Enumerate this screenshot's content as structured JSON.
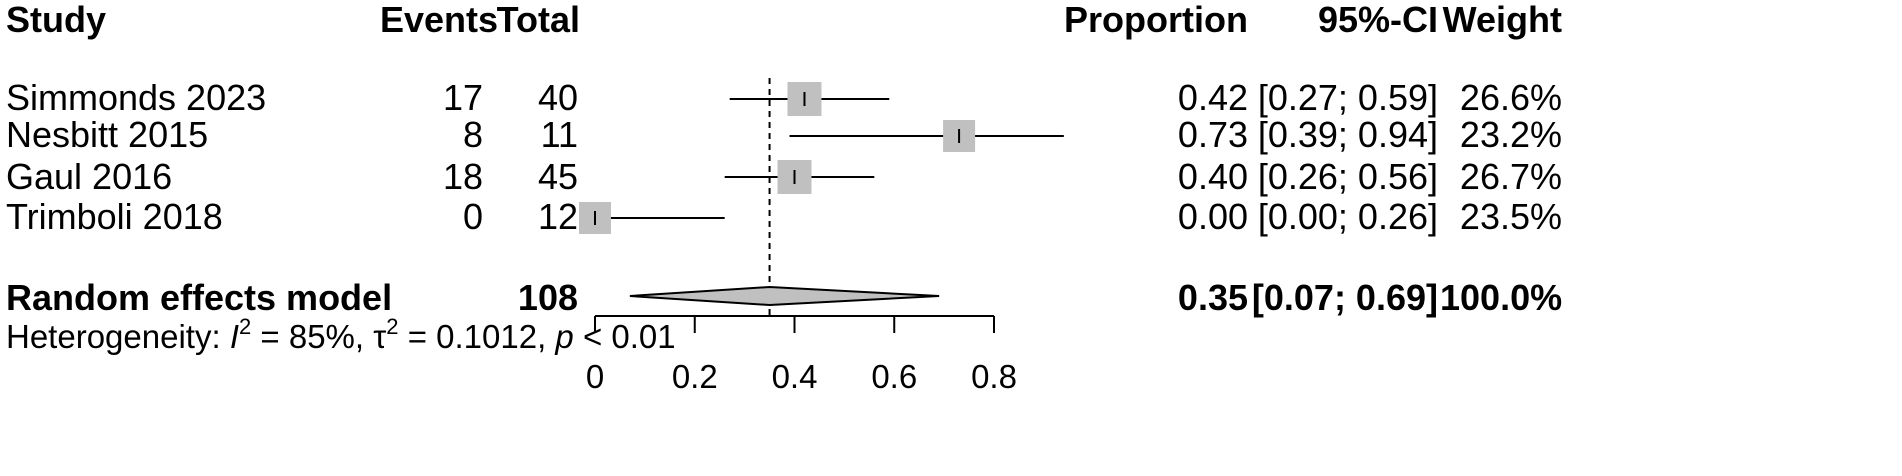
{
  "headers": {
    "study": "Study",
    "events": "Events",
    "total": "Total",
    "proportion": "Proportion",
    "ci": "95%-CI",
    "weight": "Weight"
  },
  "colors": {
    "box": "#c0c0c0",
    "line": "#000000",
    "diamond_fill": "#c0c0c0"
  },
  "chart_data": {
    "type": "forest",
    "axis": {
      "ticks": [
        "0",
        "0.2",
        "0.4",
        "0.6",
        "0.8"
      ],
      "range": [
        0,
        0.8
      ]
    },
    "reference_line": 0.35,
    "studies": [
      {
        "study": "Simmonds 2023",
        "events": "17",
        "total": "40",
        "proportion": 0.42,
        "lower": 0.27,
        "upper": 0.59,
        "prop_text": "0.42",
        "ci_text": "[0.27; 0.59]",
        "weight_text": "26.6%"
      },
      {
        "study": "Nesbitt 2015",
        "events": "8",
        "total": "11",
        "proportion": 0.73,
        "lower": 0.39,
        "upper": 0.94,
        "prop_text": "0.73",
        "ci_text": "[0.39; 0.94]",
        "weight_text": "23.2%"
      },
      {
        "study": "Gaul 2016",
        "events": "18",
        "total": "45",
        "proportion": 0.4,
        "lower": 0.26,
        "upper": 0.56,
        "prop_text": "0.40",
        "ci_text": "[0.26; 0.56]",
        "weight_text": "26.7%"
      },
      {
        "study": "Trimboli 2018",
        "events": "0",
        "total": "12",
        "proportion": 0.0,
        "lower": 0.0,
        "upper": 0.26,
        "prop_text": "0.00",
        "ci_text": "[0.00; 0.26]",
        "weight_text": "23.5%"
      }
    ],
    "summary": {
      "label": "Random effects model",
      "total": "108",
      "estimate": 0.35,
      "lower": 0.07,
      "upper": 0.69,
      "prop_text": "0.35",
      "ci_text": "[0.07; 0.69]",
      "weight_text": "100.0%"
    },
    "heterogeneity": {
      "prefix": "Heterogeneity: ",
      "i2_symbol": "I",
      "i2_rest": " = 85%, ",
      "tau_symbol": "τ",
      "tau_rest": " = 0.1012, ",
      "p_symbol": "p",
      "p_rest": " < 0.01",
      "sup": "2"
    }
  }
}
